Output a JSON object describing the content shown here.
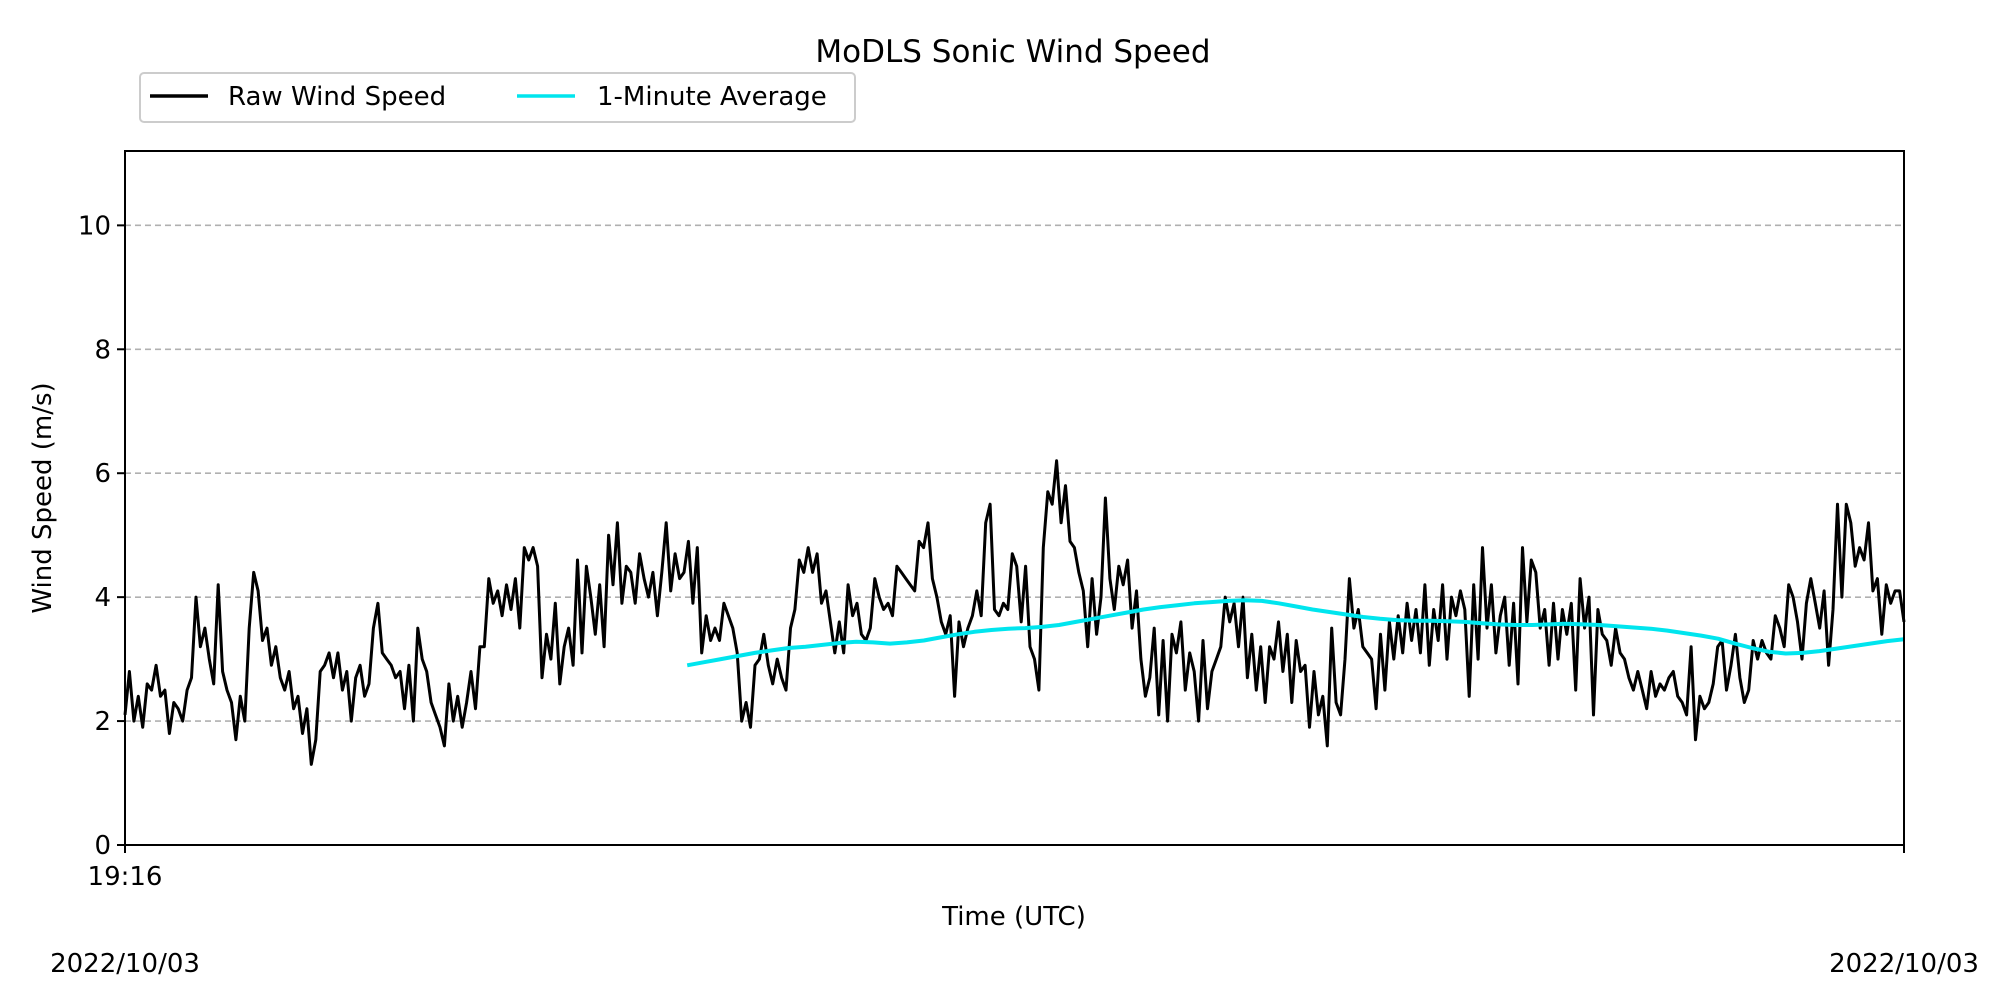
{
  "chart_data": {
    "type": "line",
    "title": "MoDLS Sonic Wind Speed",
    "xlabel": "Time (UTC)",
    "ylabel": "Wind Speed (m/s)",
    "ylim": [
      0,
      11.2
    ],
    "xlim": [
      0,
      1
    ],
    "x_unit_note": "",
    "yticks": [
      0,
      2,
      4,
      6,
      8,
      10
    ],
    "ytick_labels": [
      "0",
      "2",
      "4",
      "6",
      "8",
      "10"
    ],
    "xtick_labels": [
      "19:16"
    ],
    "date_left": "2022/10/03",
    "date_right": "2022/10/03",
    "grid": "y-dashed",
    "legend_placement": "top-left",
    "legend": [
      "Raw Wind Speed",
      "1-Minute Average"
    ],
    "series": [
      {
        "name": "Raw Wind Speed",
        "color": "#000000",
        "values": [
          2.1,
          2.8,
          2.0,
          2.4,
          1.9,
          2.6,
          2.5,
          2.9,
          2.4,
          2.5,
          1.8,
          2.3,
          2.2,
          2.0,
          2.5,
          2.7,
          4.0,
          3.2,
          3.5,
          3.0,
          2.6,
          4.2,
          2.8,
          2.5,
          2.3,
          1.7,
          2.4,
          2.0,
          3.5,
          4.4,
          4.1,
          3.3,
          3.5,
          2.9,
          3.2,
          2.7,
          2.5,
          2.8,
          2.2,
          2.4,
          1.8,
          2.2,
          1.3,
          1.7,
          2.8,
          2.9,
          3.1,
          2.7,
          3.1,
          2.5,
          2.8,
          2.0,
          2.7,
          2.9,
          2.4,
          2.6,
          3.5,
          3.9,
          3.1,
          3.0,
          2.9,
          2.7,
          2.8,
          2.2,
          2.9,
          2.0,
          3.5,
          3.0,
          2.8,
          2.3,
          2.1,
          1.9,
          1.6,
          2.6,
          2.0,
          2.4,
          1.9,
          2.3,
          2.8,
          2.2,
          3.2,
          3.2,
          4.3,
          3.9,
          4.1,
          3.7,
          4.2,
          3.8,
          4.3,
          3.5,
          4.8,
          4.6,
          4.8,
          4.5,
          2.7,
          3.4,
          3.0,
          3.9,
          2.6,
          3.2,
          3.5,
          2.9,
          4.6,
          3.1,
          4.5,
          4.0,
          3.4,
          4.2,
          3.2,
          5.0,
          4.2,
          5.2,
          3.9,
          4.5,
          4.4,
          3.9,
          4.7,
          4.3,
          4.0,
          4.4,
          3.7,
          4.4,
          5.2,
          4.1,
          4.7,
          4.3,
          4.4,
          4.9,
          3.9,
          4.8,
          3.1,
          3.7,
          3.3,
          3.5,
          3.3,
          3.9,
          3.7,
          3.5,
          3.1,
          2.0,
          2.3,
          1.9,
          2.9,
          3.0,
          3.4,
          2.9,
          2.6,
          3.0,
          2.7,
          2.5,
          3.5,
          3.8,
          4.6,
          4.4,
          4.8,
          4.4,
          4.7,
          3.9,
          4.1,
          3.6,
          3.1,
          3.6,
          3.1,
          4.2,
          3.7,
          3.9,
          3.4,
          3.3,
          3.5,
          4.3,
          4.0,
          3.8,
          3.9,
          3.7,
          4.5,
          4.4,
          4.3,
          4.2,
          4.1,
          4.9,
          4.8,
          5.2,
          4.3,
          4.0,
          3.6,
          3.4,
          3.7,
          2.4,
          3.6,
          3.2,
          3.5,
          3.7,
          4.1,
          3.7,
          5.2,
          5.5,
          3.8,
          3.7,
          3.9,
          3.8,
          4.7,
          4.5,
          3.6,
          4.5,
          3.2,
          3.0,
          2.5,
          4.8,
          5.7,
          5.5,
          6.2,
          5.2,
          5.8,
          4.9,
          4.8,
          4.4,
          4.1,
          3.2,
          4.3,
          3.4,
          4.0,
          5.6,
          4.3,
          3.8,
          4.5,
          4.2,
          4.6,
          3.5,
          4.1,
          3.0,
          2.4,
          2.7,
          3.5,
          2.1,
          3.3,
          2.0,
          3.4,
          3.1,
          3.6,
          2.5,
          3.1,
          2.8,
          2.0,
          3.3,
          2.2,
          2.8,
          3.0,
          3.2,
          4.0,
          3.6,
          3.9,
          3.2,
          4.0,
          2.7,
          3.4,
          2.5,
          3.2,
          2.3,
          3.2,
          3.0,
          3.6,
          2.8,
          3.4,
          2.3,
          3.3,
          2.8,
          2.9,
          1.9,
          2.8,
          2.1,
          2.4,
          1.6,
          3.5,
          2.3,
          2.1,
          3.0,
          4.3,
          3.5,
          3.8,
          3.2,
          3.1,
          3.0,
          2.2,
          3.4,
          2.5,
          3.6,
          3.0,
          3.7,
          3.1,
          3.9,
          3.3,
          3.8,
          3.1,
          4.2,
          2.9,
          3.8,
          3.3,
          4.2,
          3.0,
          4.0,
          3.7,
          4.1,
          3.8,
          2.4,
          4.2,
          3.0,
          4.8,
          3.5,
          4.2,
          3.1,
          3.7,
          4.0,
          2.9,
          3.9,
          2.6,
          4.8,
          3.6,
          4.6,
          4.4,
          3.5,
          3.8,
          2.9,
          3.9,
          3.0,
          3.8,
          3.4,
          3.9,
          2.5,
          4.3,
          3.5,
          4.0,
          2.1,
          3.8,
          3.4,
          3.3,
          2.9,
          3.5,
          3.1,
          3.0,
          2.7,
          2.5,
          2.8,
          2.5,
          2.2,
          2.8,
          2.4,
          2.6,
          2.5,
          2.7,
          2.8,
          2.4,
          2.3,
          2.1,
          3.2,
          1.7,
          2.4,
          2.2,
          2.3,
          2.6,
          3.2,
          3.3,
          2.5,
          2.9,
          3.4,
          2.7,
          2.3,
          2.5,
          3.3,
          3.0,
          3.3,
          3.1,
          3.0,
          3.7,
          3.5,
          3.2,
          4.2,
          4.0,
          3.6,
          3.0,
          3.9,
          4.3,
          3.9,
          3.5,
          4.1,
          2.9,
          3.8,
          5.5,
          4.0,
          5.5,
          5.2,
          4.5,
          4.8,
          4.6,
          5.2,
          4.1,
          4.3,
          3.4,
          4.2,
          3.9,
          4.1,
          4.1,
          3.6
        ]
      },
      {
        "name": "1-Minute Average",
        "color": "#00e5ee",
        "x_start": 0.316,
        "values": [
          2.9,
          2.95,
          3.0,
          3.05,
          3.1,
          3.14,
          3.18,
          3.2,
          3.23,
          3.26,
          3.28,
          3.27,
          3.25,
          3.27,
          3.3,
          3.35,
          3.4,
          3.44,
          3.47,
          3.49,
          3.5,
          3.52,
          3.55,
          3.6,
          3.65,
          3.7,
          3.75,
          3.8,
          3.84,
          3.87,
          3.9,
          3.92,
          3.94,
          3.95,
          3.94,
          3.9,
          3.85,
          3.8,
          3.76,
          3.72,
          3.68,
          3.65,
          3.63,
          3.62,
          3.62,
          3.61,
          3.6,
          3.58,
          3.56,
          3.55,
          3.55,
          3.56,
          3.57,
          3.56,
          3.55,
          3.53,
          3.51,
          3.49,
          3.46,
          3.42,
          3.38,
          3.33,
          3.25,
          3.18,
          3.12,
          3.09,
          3.1,
          3.13,
          3.17,
          3.21,
          3.25,
          3.29,
          3.32
        ]
      }
    ]
  }
}
